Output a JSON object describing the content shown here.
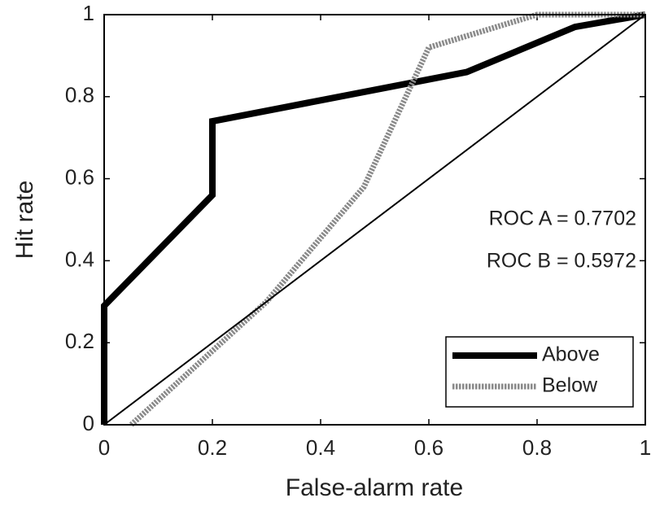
{
  "chart_data": {
    "type": "line",
    "xlabel": "False-alarm rate",
    "ylabel": "Hit rate",
    "xlim": [
      0,
      1
    ],
    "ylim": [
      0,
      1
    ],
    "xticks": [
      0,
      0.2,
      0.4,
      0.6,
      0.8,
      1
    ],
    "yticks": [
      0,
      0.2,
      0.4,
      0.6,
      0.8,
      1
    ],
    "grid": false,
    "legend": "lower right",
    "annotations": [
      "ROC A = 0.7702",
      "ROC B = 0.5972"
    ],
    "series": [
      {
        "name": "Above",
        "color": "#000000",
        "dashed": false,
        "width": 8,
        "x": [
          0,
          0,
          0.2,
          0.2,
          0.67,
          0.87,
          1
        ],
        "values": [
          0,
          0.29,
          0.56,
          0.74,
          0.86,
          0.97,
          1
        ]
      },
      {
        "name": "Below",
        "color": "#8a8a8a",
        "dashed": true,
        "width": 7,
        "x": [
          0.05,
          0.3,
          0.48,
          0.6,
          0.8,
          1
        ],
        "values": [
          0,
          0.3,
          0.58,
          0.92,
          1,
          1
        ]
      },
      {
        "color": "#000000",
        "dashed": false,
        "width": 2,
        "x": [
          0,
          1
        ],
        "values": [
          0,
          1
        ]
      }
    ]
  }
}
